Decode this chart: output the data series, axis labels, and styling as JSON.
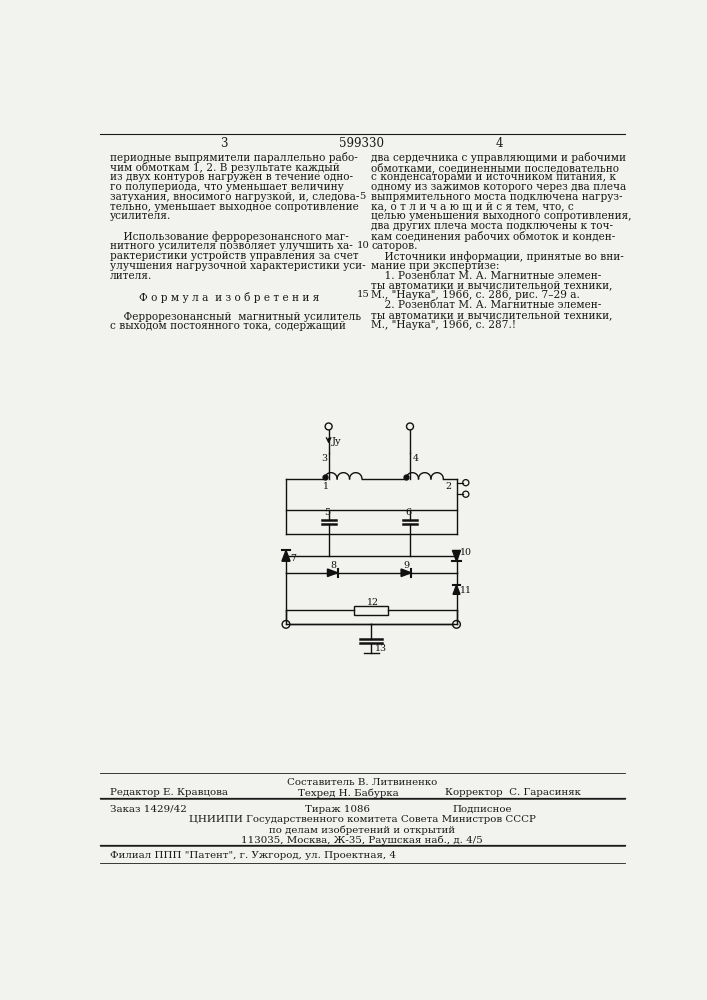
{
  "page_number_center": "599330",
  "page_left": "3",
  "page_right": "4",
  "col_left_text": [
    "периодные выпрямители параллельно рабо-",
    "чим обмоткам 1, 2. В результате каждый",
    "из двух контуров нагружен в течение одно-",
    "го полупериода, что уменьшает величину",
    "затухания, вносимого нагрузкой, и, следова-",
    "тельно, уменьшает выходное сопротивление",
    "усилителя.",
    "",
    "    Использование феррорезонансного маг-",
    "нитного усилителя позволяет улучшить ха-",
    "рактеристики устройств управления за счет",
    "улучшения нагрузочной характеристики уси-",
    "лителя."
  ],
  "formula_title": "Ф о р м у л а  и з о б р е т е н и я",
  "formula_text": [
    "    Феррорезонансный  магнитный усилитель",
    "с выходом постоянного тока, содержащий"
  ],
  "col_right_text": [
    "два сердечника с управляющими и рабочими",
    "обмотками, соединенными последовательно",
    "с конденсаторами и источником питания, к",
    "одному из зажимов которого через два плеча",
    "выпрямительного моста подключена нагруз-",
    "ка, о т л и ч а ю щ и й с я тем, что, с",
    "целью уменьшения выходного сопротивления,",
    "два других плеча моста подключены к точ-",
    "кам соединения рабочих обмоток и конден-",
    "саторов.",
    "    Источники информации, принятые во вни-",
    "мание при экспертизе:",
    "    1. Розенблат М. А. Магнитные элемен-",
    "ты автоматики и вычислительной техники,",
    "М., \"Наука\", 1966, с. 286, рис. 7–29 а.",
    "    2. Розенблат М. А. Магнитные элемен-",
    "ты автоматики и вычислительной техники,",
    "М., \"Наука\", 1966, с. 287.!"
  ],
  "footer_line1": "Составитель В. Литвиненко",
  "footer_line2_left": "Редактор Е. Кравцова",
  "footer_line2_mid": "Техред Н. Бабурка",
  "footer_line2_right": "Корректор  С. Гарасиняк",
  "footer_line3_left": "Заказ 1429/42",
  "footer_line3_mid": "Тираж 1086",
  "footer_line3_right": "Подписное",
  "footer_line4": "ЦНИИПИ Государственного комитета Совета Министров СССР",
  "footer_line5": "по делам изобретений и открытий",
  "footer_line6": "113035, Москва, Ж-35, Раушская наб., д. 4/5",
  "footer_line7": "Филиал ППП \"Патент\", г. Ужгород, ул. Проектная, 4",
  "bg_color": "#f2f2ee",
  "text_color": "#1a1a1a",
  "circuit_color": "#111111"
}
